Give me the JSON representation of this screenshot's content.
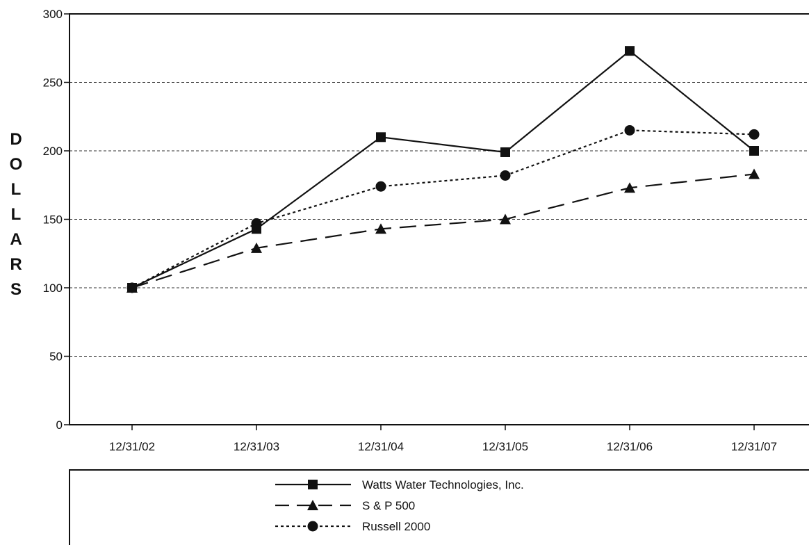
{
  "chart_data": {
    "type": "line",
    "categories": [
      "12/31/02",
      "12/31/03",
      "12/31/04",
      "12/31/05",
      "12/31/06",
      "12/31/07"
    ],
    "series": [
      {
        "name": "Watts Water Technologies, Inc.",
        "values": [
          100,
          143,
          210,
          199,
          273,
          200
        ],
        "marker": "square",
        "line_style": "solid"
      },
      {
        "name": "S & P 500",
        "values": [
          100,
          129,
          143,
          150,
          173,
          183
        ],
        "marker": "triangle",
        "line_style": "dashed"
      },
      {
        "name": "Russell 2000",
        "values": [
          100,
          147,
          174,
          182,
          215,
          212
        ],
        "marker": "circle",
        "line_style": "dotted"
      }
    ],
    "ylabel": "DOLLARS",
    "ylim": [
      0,
      300
    ],
    "yticks": [
      0,
      50,
      100,
      150,
      200,
      250,
      300
    ],
    "grid": "horizontal dashed",
    "legend": "bottom",
    "colors": {
      "line": "#111111",
      "grid": "#333333",
      "background": "#ffffff"
    }
  }
}
